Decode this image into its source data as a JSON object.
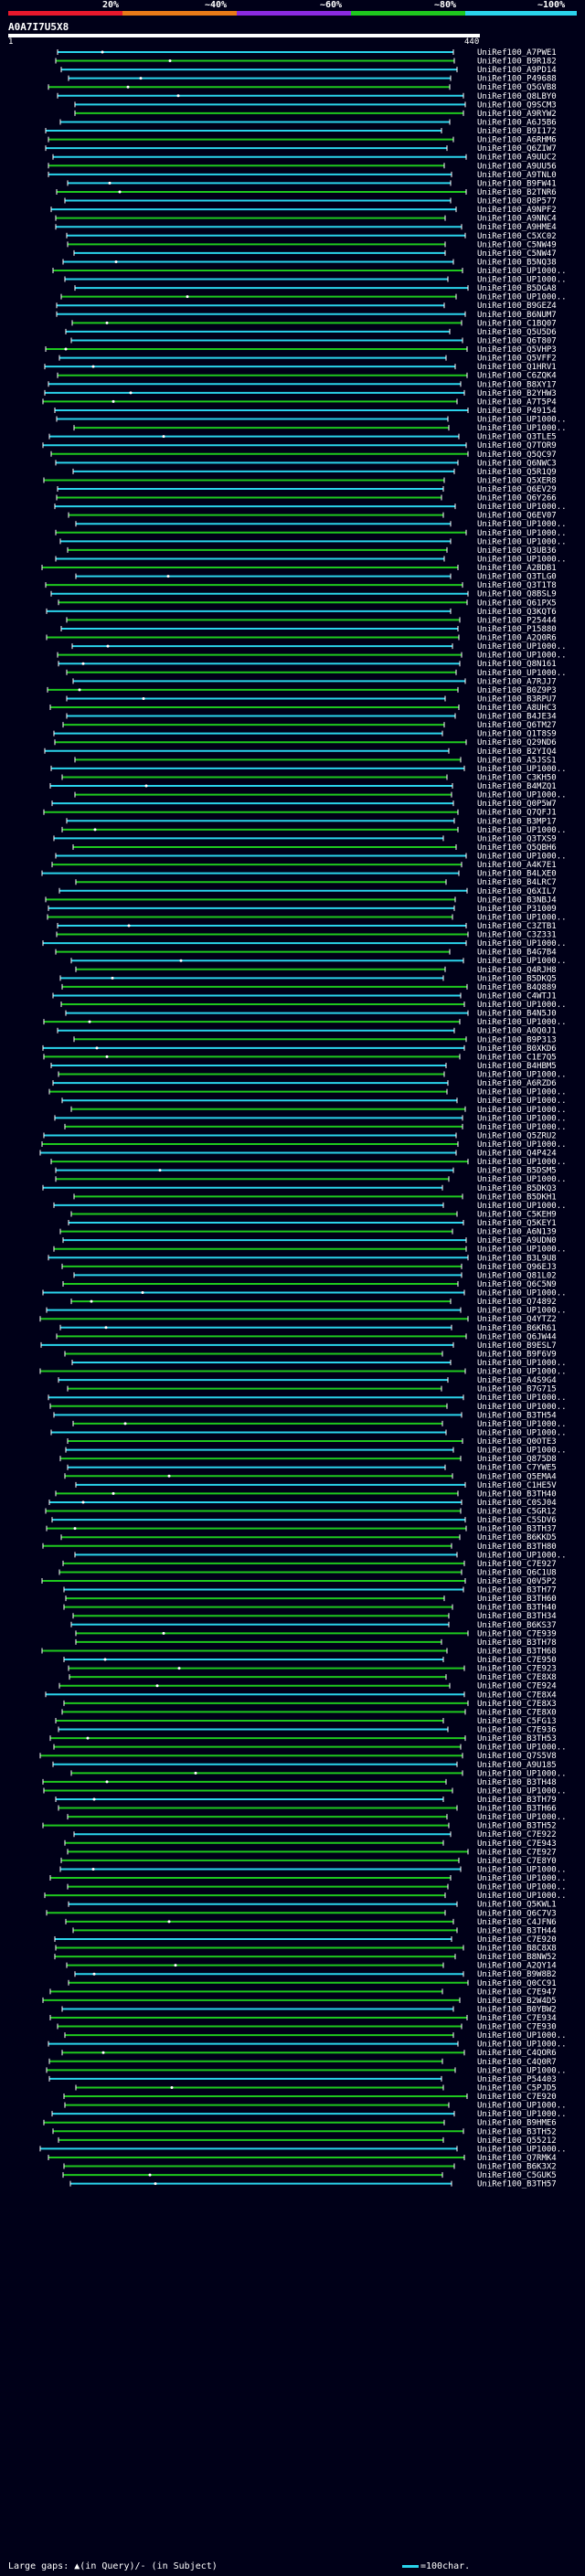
{
  "scale": {
    "labels": [
      "20%",
      "~40%",
      "~60%",
      "~80%",
      "~100%"
    ],
    "colors": [
      "#e8182c",
      "#e87a18",
      "#8a2ae0",
      "#1ec81e",
      "#2ad4ec"
    ]
  },
  "query": {
    "name": "A0A7I7U5X8",
    "start": "1",
    "end": "440"
  },
  "colors": {
    "high": "#2ad4ec",
    "mid": "#1ec81e",
    "background": "#000018"
  },
  "hits": [
    "UniRef100_A7PWE1",
    "UniRef100_B9R182",
    "UniRef100_A9PD14",
    "UniRef100_P49688",
    "UniRef100_Q5GVB8",
    "UniRef100_Q8LBY0",
    "UniRef100_Q9SCM3",
    "UniRef100_A9RYW2",
    "UniRef100_A6J5B6",
    "UniRef100_B9I172",
    "UniRef100_A6RHM6",
    "UniRef100_Q6ZIW7",
    "UniRef100_A9UUC2",
    "UniRef100_A9UU56",
    "UniRef100_A9TNL0",
    "UniRef100_B9FW41",
    "UniRef100_B2TNR6",
    "UniRef100_Q8P577",
    "UniRef100_A9NPF2",
    "UniRef100_A9NNC4",
    "UniRef100_A9HME4",
    "UniRef100_C5XC02",
    "UniRef100_C5NW49",
    "UniRef100_C5NW47",
    "UniRef100_B5NQ38",
    "UniRef100_UP1000..",
    "UniRef100_UP1000..",
    "UniRef100_B5DGA8",
    "UniRef100_UP1000..",
    "UniRef100_B9GEZ4",
    "UniRef100_B6NUM7",
    "UniRef100_C1BQ07",
    "UniRef100_Q5U5D6",
    "UniRef100_Q6T807",
    "UniRef100_Q5VHP3",
    "UniRef100_Q5VFF2",
    "UniRef100_Q1HRV1",
    "UniRef100_C6ZQK4",
    "UniRef100_B8XY17",
    "UniRef100_B2YHW3",
    "UniRef100_A7T5P4",
    "UniRef100_P49154",
    "UniRef100_UP1000..",
    "UniRef100_UP1000..",
    "UniRef100_Q3TLE5",
    "UniRef100_Q7TOR9",
    "UniRef100_Q5QC97",
    "UniRef100_Q6NWC3",
    "UniRef100_Q5R1Q9",
    "UniRef100_Q5XER8",
    "UniRef100_Q6EV29",
    "UniRef100_Q6Y266",
    "UniRef100_UP1000..",
    "UniRef100_Q6EV07",
    "UniRef100_UP1000..",
    "UniRef100_UP1000..",
    "UniRef100_UP1000..",
    "UniRef100_Q3UB36",
    "UniRef100_UP1000..",
    "UniRef100_A2BDB1",
    "UniRef100_Q3TLG0",
    "UniRef100_Q3T1T8",
    "UniRef100_Q8BSL9",
    "UniRef100_Q61PX5",
    "UniRef100_Q3KQT6",
    "UniRef100_P25444",
    "UniRef100_P15880",
    "UniRef100_A2Q0R6",
    "UniRef100_UP1000..",
    "UniRef100_UP1000..",
    "UniRef100_Q8N161",
    "UniRef100_UP1000..",
    "UniRef100_A7RJJ7",
    "UniRef100_B0Z9P3",
    "UniRef100_B3RPU7",
    "UniRef100_A8UHC3",
    "UniRef100_B4JE34",
    "UniRef100_Q6TM27",
    "UniRef100_Q1T8S9",
    "UniRef100_Q29ND6",
    "UniRef100_B2YIQ4",
    "UniRef100_A5JSS1",
    "UniRef100_UP1000..",
    "UniRef100_C3KH50",
    "UniRef100_B4MZQ1",
    "UniRef100_UP1000..",
    "UniRef100_Q0P5W7",
    "UniRef100_Q7QFJ1",
    "UniRef100_B3MP17",
    "UniRef100_UP1000..",
    "UniRef100_Q3TXS9",
    "UniRef100_Q5QBH6",
    "UniRef100_UP1000..",
    "UniRef100_A4K7E1",
    "UniRef100_B4LXE0",
    "UniRef100_B4LRC7",
    "UniRef100_Q6XIL7",
    "UniRef100_B3NBJ4",
    "UniRef100_P31009",
    "UniRef100_UP1000..",
    "UniRef100_C3ZTB1",
    "UniRef100_C3Z331",
    "UniRef100_UP1000..",
    "UniRef100_B4G7B4",
    "UniRef100_UP1000..",
    "UniRef100_Q4RJH8",
    "UniRef100_B5DKQ5",
    "UniRef100_B4Q889",
    "UniRef100_C4WTJ1",
    "UniRef100_UP1000..",
    "UniRef100_B4N5J0",
    "UniRef100_UP1000..",
    "UniRef100_A0Q0J1",
    "UniRef100_B9P313",
    "UniRef100_B0XKD6",
    "UniRef100_C1E7Q5",
    "UniRef100_B4HBM5",
    "UniRef100_UP1000..",
    "UniRef100_A6RZD6",
    "UniRef100_UP1000..",
    "UniRef100_UP1000..",
    "UniRef100_UP1000..",
    "UniRef100_UP1000..",
    "UniRef100_UP1000..",
    "UniRef100_Q5ZRU2",
    "UniRef100_UP1000..",
    "UniRef100_Q4P424",
    "UniRef100_UP1000..",
    "UniRef100_B5DSM5",
    "UniRef100_UP1000..",
    "UniRef100_B5DKQ3",
    "UniRef100_B5DKH1",
    "UniRef100_UP1000..",
    "UniRef100_C5KEH9",
    "UniRef100_Q5KEY1",
    "UniRef100_A6N139",
    "UniRef100_A9UDN0",
    "UniRef100_UP1000..",
    "UniRef100_B3L9U8",
    "UniRef100_Q96EJ3",
    "UniRef100_Q81L02",
    "UniRef100_Q6C5N9",
    "UniRef100_UP1000..",
    "UniRef100_Q74892",
    "UniRef100_UP1000..",
    "UniRef100_Q4YTZ2",
    "UniRef100_B6KR61",
    "UniRef100_Q6JW44",
    "UniRef100_B9ESL7",
    "UniRef100_B9F6V9",
    "UniRef100_UP1000..",
    "UniRef100_UP1000..",
    "UniRef100_A4S9G4",
    "UniRef100_B7G715",
    "UniRef100_UP1000..",
    "UniRef100_UP1000..",
    "UniRef100_B3TH54",
    "UniRef100_UP1000..",
    "UniRef100_UP1000..",
    "UniRef100_Q0OTE3",
    "UniRef100_UP1000..",
    "UniRef100_Q875D8",
    "UniRef100_C7YWE5",
    "UniRef100_Q5EMA4",
    "UniRef100_C1HE5V",
    "UniRef100_B3TH40",
    "UniRef100_C0SJ04",
    "UniRef100_C5GR12",
    "UniRef100_C5SDV6",
    "UniRef100_B3TH37",
    "UniRef100_B6KKD5",
    "UniRef100_B3TH80",
    "UniRef100_UP1000..",
    "UniRef100_C7E927",
    "UniRef100_Q6C1U8",
    "UniRef100_Q0V5P2",
    "UniRef100_B3TH77",
    "UniRef100_B3TH60",
    "UniRef100_B3TH40",
    "UniRef100_B3TH34",
    "UniRef100_B6KS37",
    "UniRef100_C7E939",
    "UniRef100_B3TH78",
    "UniRef100_B3TH68",
    "UniRef100_C7E950",
    "UniRef100_C7E923",
    "UniRef100_C7E8X8",
    "UniRef100_C7E924",
    "UniRef100_C7E8X4",
    "UniRef100_C7E8X3",
    "UniRef100_C7E8X0",
    "UniRef100_C5FG13",
    "UniRef100_C7E936",
    "UniRef100_B3TH53",
    "UniRef100_UP1000..",
    "UniRef100_Q7S5V8",
    "UniRef100_A9U185",
    "UniRef100_UP1000..",
    "UniRef100_B3TH48",
    "UniRef100_UP1000..",
    "UniRef100_B3TH79",
    "UniRef100_B3TH66",
    "UniRef100_UP1000..",
    "UniRef100_B3TH52",
    "UniRef100_C7E922",
    "UniRef100_C7E943",
    "UniRef100_C7E927",
    "UniRef100_C7E8Y0",
    "UniRef100_UP1000..",
    "UniRef100_UP1000..",
    "UniRef100_UP1000..",
    "UniRef100_UP1000..",
    "UniRef100_Q5KWL1",
    "UniRef100_Q6C7V3",
    "UniRef100_C4JFN6",
    "UniRef100_B3TH44",
    "UniRef100_C7E920",
    "UniRef100_B8C8X8",
    "UniRef100_B8NW52",
    "UniRef100_A2QY14",
    "UniRef100_B9W8B2",
    "UniRef100_Q0CC91",
    "UniRef100_C7E947",
    "UniRef100_B2W4D5",
    "UniRef100_B0YBW2",
    "UniRef100_C7E934",
    "UniRef100_C7E930",
    "UniRef100_UP1000..",
    "UniRef100_UP1000..",
    "UniRef100_C4QOR6",
    "UniRef100_C4Q0R7",
    "UniRef100_UP1000..",
    "UniRef100_P54403",
    "UniRef100_C5PJD5",
    "UniRef100_C7E920",
    "UniRef100_UP1000..",
    "UniRef100_UP1000..",
    "UniRef100_B9HME6",
    "UniRef100_B3TH52",
    "UniRef100_Q55212",
    "UniRef100_UP1000..",
    "UniRef100_Q7RMK4",
    "UniRef100_B6K3X2",
    "UniRef100_C5GUK5",
    "UniRef100_B3TH57"
  ],
  "footer": {
    "gaps_label": "Large gaps:",
    "gaps_desc": "▲(in Query)/- (in Subject)",
    "key_label": "=100char."
  }
}
